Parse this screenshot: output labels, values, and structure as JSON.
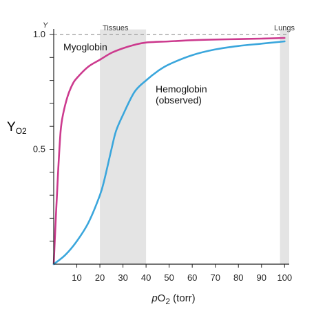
{
  "chart_data": {
    "type": "line",
    "xlabel_prefix": "p",
    "xlabel_sub": "O",
    "xlabel_sub2": "2",
    "xlabel_suffix": " (torr)",
    "ylabel_top": "Y",
    "ylabel_side_main": "Y",
    "ylabel_side_sub": "O2",
    "xlim": [
      0,
      102
    ],
    "ylim": [
      0,
      1.04
    ],
    "x_ticks": [
      10,
      20,
      30,
      40,
      50,
      60,
      70,
      80,
      90,
      100
    ],
    "x_tick_labels": [
      "10",
      "20",
      "30",
      "40",
      "50",
      "60",
      "70",
      "80",
      "90",
      "100"
    ],
    "y_tick_labels": [
      {
        "value": 1.0,
        "label": "1.0"
      },
      {
        "value": 0.5,
        "label": "0.5"
      }
    ],
    "y_minor_ticks": [
      0.1,
      0.2,
      0.3,
      0.4,
      0.6,
      0.7,
      0.8,
      0.9
    ],
    "reference_line": {
      "y": 1.0,
      "style": "dashed",
      "color": "#999999"
    },
    "shaded_regions": [
      {
        "x0": 20,
        "x1": 40,
        "label": "Tissues",
        "color": "#e4e4e4"
      },
      {
        "x0": 98,
        "x1": 102,
        "label": "Lungs",
        "color": "#e4e4e4"
      }
    ],
    "series": [
      {
        "name": "Myoglobin",
        "color": "#cc3a8e",
        "x": [
          0,
          1,
          2,
          3,
          4,
          6,
          8,
          10,
          15,
          20,
          25,
          30,
          35,
          40,
          50,
          60,
          70,
          80,
          90,
          100
        ],
        "y": [
          0,
          0.22,
          0.42,
          0.58,
          0.65,
          0.73,
          0.78,
          0.81,
          0.86,
          0.89,
          0.92,
          0.94,
          0.955,
          0.965,
          0.97,
          0.975,
          0.978,
          0.98,
          0.982,
          0.985
        ]
      },
      {
        "name": "Hemoglobin",
        "name_line2": "(observed)",
        "color": "#3aa6dc",
        "x": [
          0,
          5,
          10,
          15,
          20,
          22,
          25,
          27,
          30,
          35,
          40,
          45,
          50,
          60,
          70,
          80,
          90,
          100
        ],
        "y": [
          0,
          0.04,
          0.1,
          0.18,
          0.3,
          0.37,
          0.5,
          0.58,
          0.65,
          0.75,
          0.8,
          0.84,
          0.87,
          0.91,
          0.935,
          0.95,
          0.96,
          0.97
        ]
      }
    ]
  }
}
